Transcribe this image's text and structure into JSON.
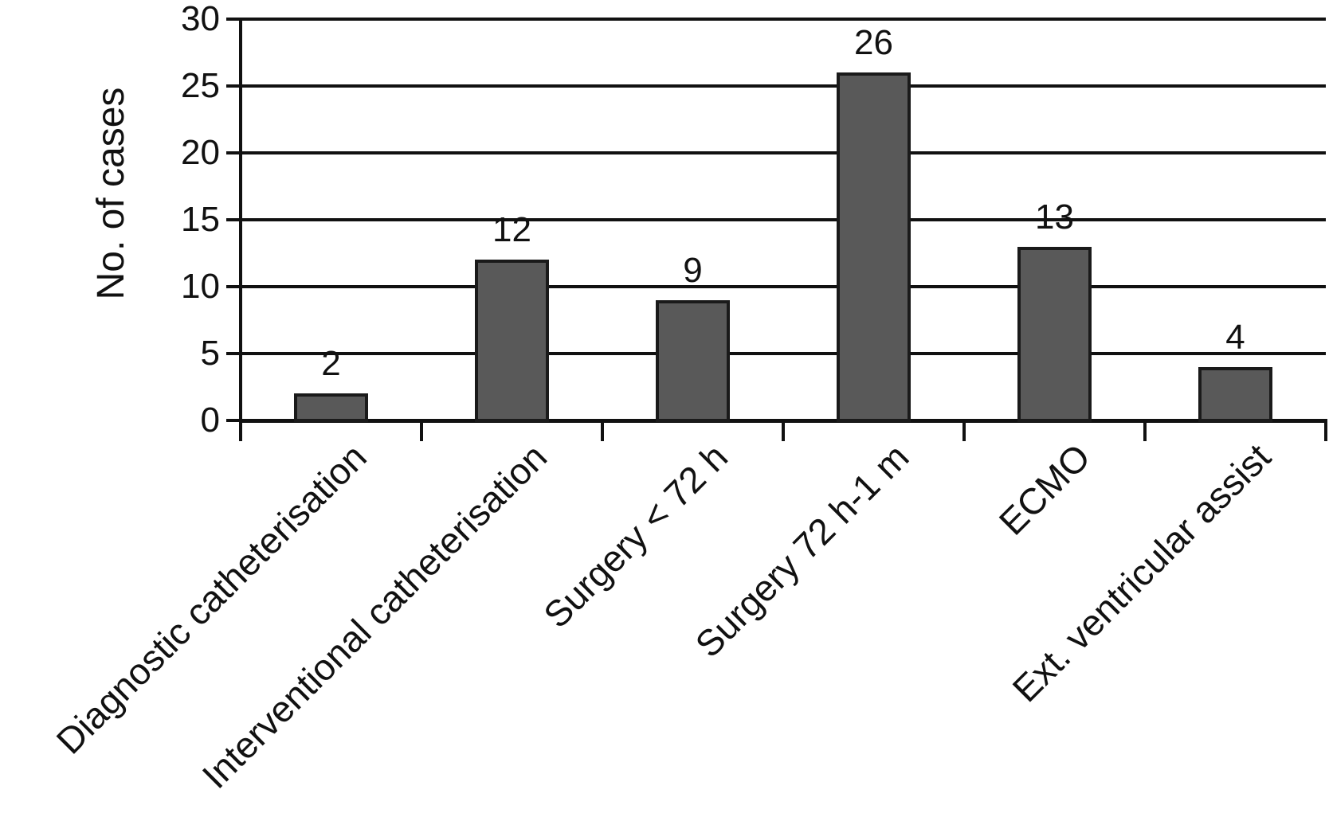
{
  "chart_data": {
    "type": "bar",
    "title": "",
    "xlabel": "",
    "ylabel": "No. of cases",
    "categories": [
      "Diagnostic catheterisation",
      "Interventional catheterisation",
      "Surgery < 72 h",
      "Surgery 72 h-1 m",
      "ECMO",
      "Ext. ventricular assist"
    ],
    "values": [
      2,
      12,
      9,
      26,
      13,
      4
    ],
    "value_labels": [
      "2",
      "12",
      "9",
      "26",
      "13",
      "4"
    ],
    "ylim": [
      0,
      30
    ],
    "yticks": [
      0,
      5,
      10,
      15,
      20,
      25,
      30
    ],
    "grid": "horizontal-gridlines-at-each-ytick",
    "legend": "none",
    "x_tick_label_rotation_deg": 45,
    "bar_color": "#595959",
    "bar_border_color": "#1a1a1a",
    "axis_color": "#111111",
    "text_color": "#111111",
    "background_color": "#ffffff"
  }
}
